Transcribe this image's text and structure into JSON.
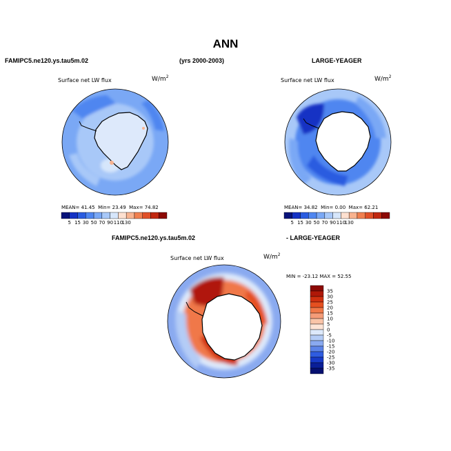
{
  "figure": {
    "title": "ANN",
    "left_case": "FAMIPC5.ne120.ys.tau5m.02",
    "years": "(yrs 2000-2003)",
    "right_case": "LARGE-YEAGER",
    "diff_left": "FAMIPC5.ne120.ys.tau5m.02",
    "diff_right": "- LARGE-YEAGER"
  },
  "panels": [
    {
      "id": "model",
      "label": "Surface net LW flux",
      "units": "W/m",
      "units_exp": "2",
      "stats": {
        "mean_label": "MEAN=",
        "mean": "41.45",
        "min_label": "Min=",
        "min": "23.49",
        "max_label": "Max=",
        "max": "74.82"
      },
      "colorbar_ticks": [
        "5",
        "15",
        "30",
        "50",
        "70",
        "90",
        "110",
        "130"
      ]
    },
    {
      "id": "obs",
      "label": "Surface net LW flux",
      "units": "W/m",
      "units_exp": "2",
      "stats": {
        "mean_label": "MEAN=",
        "mean": "34.82",
        "min_label": "Min=",
        "min": "0.00",
        "max_label": "Max=",
        "max": "62.21"
      },
      "colorbar_ticks": [
        "5",
        "15",
        "30",
        "50",
        "70",
        "90",
        "110",
        "130"
      ]
    },
    {
      "id": "diff",
      "label": "Surface net LW flux",
      "units": "W/m",
      "units_exp": "2",
      "stats_text": "MIN = -23.12  MAX =  52.55",
      "colorbar_ticks": [
        "35",
        "30",
        "25",
        "20",
        "15",
        "10",
        "5",
        "0",
        "-5",
        "-10",
        "-15",
        "-20",
        "-25",
        "-30",
        "-35"
      ]
    }
  ],
  "colors": {
    "seq_scale": [
      "#08137a",
      "#1432c4",
      "#2a5ce0",
      "#4f86f0",
      "#7aa8f5",
      "#a8c8f8",
      "#d6e6fb",
      "#fde0d0",
      "#f8b390",
      "#f08050",
      "#e05028",
      "#c02810",
      "#8c0a05"
    ],
    "div_scale": [
      "#8c0a05",
      "#b01808",
      "#d03010",
      "#e55020",
      "#f07848",
      "#f59c78",
      "#f9c4a8",
      "#fde4d6",
      "#dde9fb",
      "#b4ccf6",
      "#8aaaf0",
      "#5c84e8",
      "#2f5ce0",
      "#173ac8",
      "#0a1f98",
      "#061070"
    ]
  }
}
